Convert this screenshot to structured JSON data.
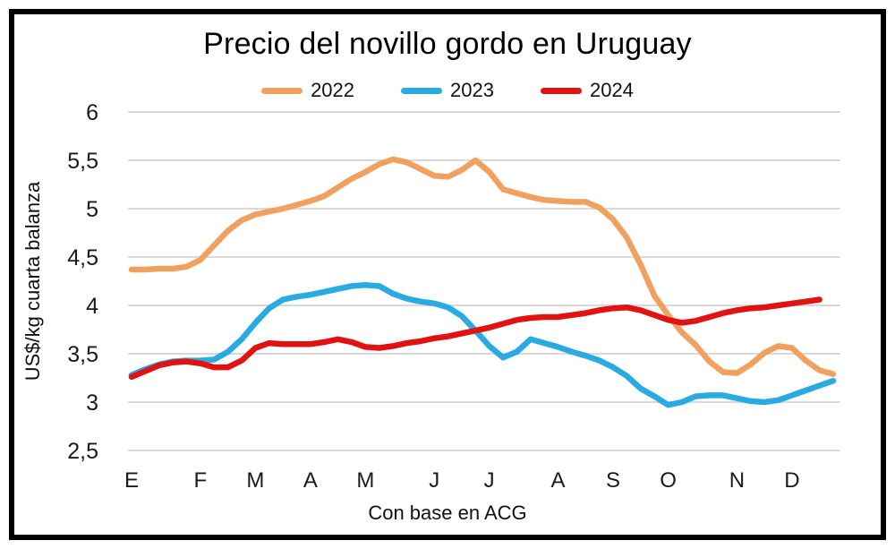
{
  "chart_data": {
    "type": "line",
    "title": "Precio del novillo gordo en Uruguay",
    "ylabel": "US$/kg cuarta balanza",
    "xlabel": "",
    "footnote": "Con base en ACG",
    "ylim": [
      2.5,
      6
    ],
    "grid": true,
    "grid_color": "#D9D9D9",
    "legend_position": "top",
    "x_unit": "week-of-year",
    "y_ticks": {
      "values": [
        6,
        5.5,
        5,
        4.5,
        4,
        3.5,
        3,
        2.5
      ],
      "labels": [
        "6",
        "5,5",
        "5",
        "4,5",
        "4",
        "3,5",
        "3",
        "2,5"
      ]
    },
    "x_ticks": {
      "labels": [
        "E",
        "F",
        "M",
        "A",
        "M",
        "J",
        "J",
        "A",
        "S",
        "O",
        "N",
        "D"
      ],
      "week_positions": [
        0,
        5,
        9,
        13,
        17,
        22,
        26,
        31,
        35,
        39,
        44,
        48
      ]
    },
    "series": [
      {
        "name": "2022",
        "color": "#F0A160",
        "values": [
          4.37,
          4.37,
          4.38,
          4.38,
          4.4,
          4.47,
          4.62,
          4.77,
          4.88,
          4.94,
          4.97,
          5.0,
          5.04,
          5.08,
          5.13,
          5.22,
          5.31,
          5.38,
          5.46,
          5.51,
          5.48,
          5.41,
          5.34,
          5.33,
          5.4,
          5.5,
          5.38,
          5.2,
          5.16,
          5.12,
          5.09,
          5.08,
          5.07,
          5.07,
          5.01,
          4.89,
          4.7,
          4.42,
          4.1,
          3.9,
          3.72,
          3.59,
          3.42,
          3.31,
          3.3,
          3.39,
          3.51,
          3.58,
          3.56,
          3.43,
          3.33,
          3.29
        ]
      },
      {
        "name": "2023",
        "color": "#29ABE2",
        "values": [
          3.28,
          3.34,
          3.39,
          3.42,
          3.43,
          3.43,
          3.44,
          3.52,
          3.65,
          3.82,
          3.97,
          4.06,
          4.09,
          4.11,
          4.14,
          4.17,
          4.2,
          4.21,
          4.2,
          4.12,
          4.07,
          4.04,
          4.02,
          3.98,
          3.89,
          3.74,
          3.58,
          3.46,
          3.52,
          3.65,
          3.61,
          3.57,
          3.52,
          3.48,
          3.43,
          3.36,
          3.27,
          3.14,
          3.06,
          2.97,
          3.0,
          3.06,
          3.07,
          3.07,
          3.04,
          3.01,
          3.0,
          3.02,
          3.07,
          3.12,
          3.17,
          3.22
        ]
      },
      {
        "name": "2024",
        "color": "#E01212",
        "values": [
          3.26,
          3.32,
          3.38,
          3.41,
          3.42,
          3.4,
          3.36,
          3.36,
          3.43,
          3.56,
          3.61,
          3.6,
          3.6,
          3.6,
          3.62,
          3.65,
          3.62,
          3.57,
          3.56,
          3.58,
          3.61,
          3.63,
          3.66,
          3.68,
          3.71,
          3.74,
          3.77,
          3.81,
          3.85,
          3.87,
          3.88,
          3.88,
          3.9,
          3.92,
          3.95,
          3.97,
          3.98,
          3.95,
          3.9,
          3.85,
          3.82,
          3.84,
          3.88,
          3.92,
          3.95,
          3.97,
          3.98,
          4.0,
          4.02,
          4.04,
          4.06
        ]
      }
    ]
  }
}
